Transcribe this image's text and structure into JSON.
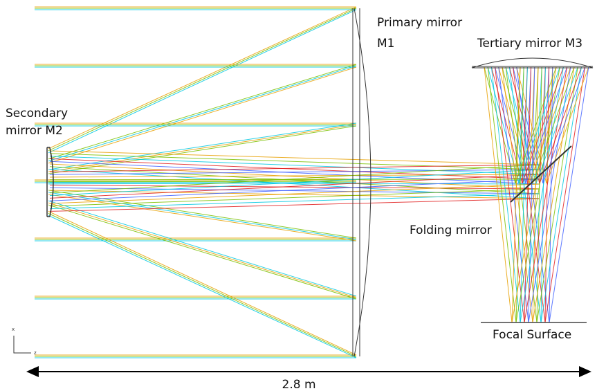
{
  "labels": {
    "secondary_mirror": [
      "Secondary",
      "mirror M2"
    ],
    "primary_mirror": [
      "Primary mirror",
      "M1"
    ],
    "tertiary_mirror": "Tertiary mirror M3",
    "folding_mirror": "Folding mirror",
    "focal_surface": "Focal Surface"
  },
  "scale_bar": "2.8 m",
  "axes": {
    "x": "x",
    "z": "z"
  }
}
